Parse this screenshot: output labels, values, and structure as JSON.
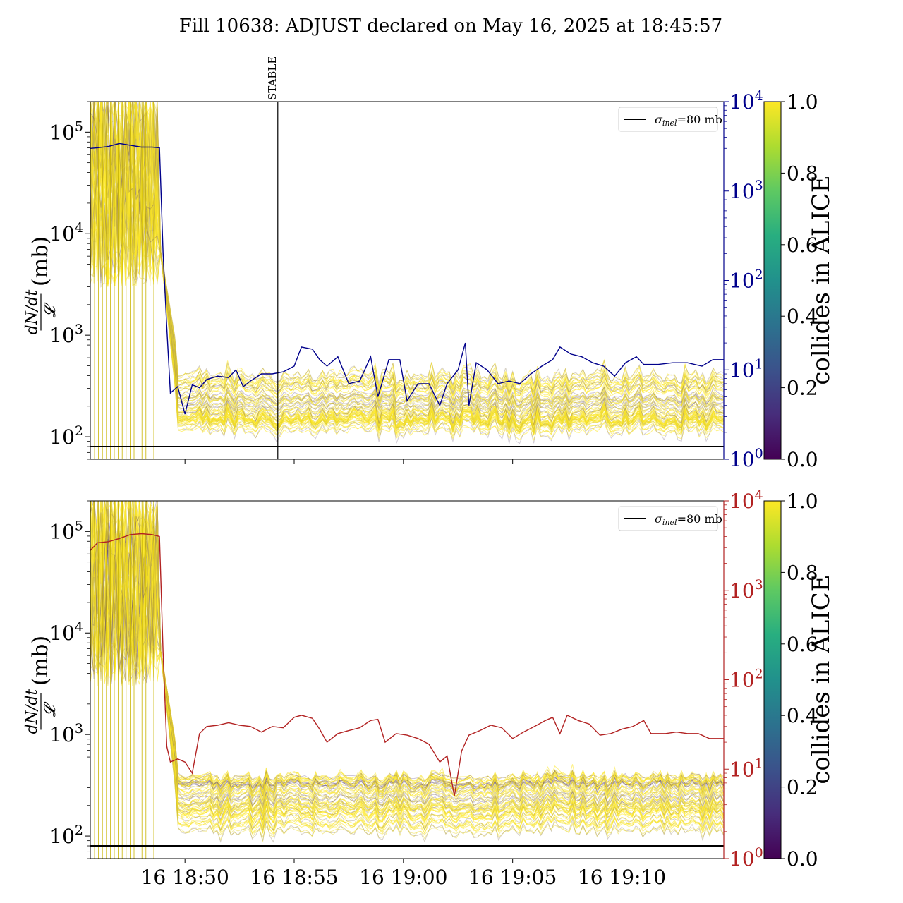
{
  "figure": {
    "title": "Fill 10638: ADJUST declared on May 16, 2025 at 18:45:57"
  },
  "chart_data": [
    {
      "type": "line",
      "panel": "top",
      "ylabel_num": "dN/dt",
      "ylabel_den": "𝓛",
      "ylabel_unit": "(mb)",
      "y_scale": "log",
      "ylim": [
        60,
        200000
      ],
      "y_ticks": [
        {
          "base": "10",
          "exp": "2"
        },
        {
          "base": "10",
          "exp": "3"
        },
        {
          "base": "10",
          "exp": "4"
        },
        {
          "base": "10",
          "exp": "5"
        }
      ],
      "y2_scale": "log",
      "y2lim": [
        1,
        10000
      ],
      "y2_color": "#00008b",
      "y2_ticks": [
        {
          "base": "10",
          "exp": "0"
        },
        {
          "base": "10",
          "exp": "1"
        },
        {
          "base": "10",
          "exp": "2"
        },
        {
          "base": "10",
          "exp": "3"
        },
        {
          "base": "10",
          "exp": "4"
        }
      ],
      "xlim": [
        "18:45:40",
        "19:14:40"
      ],
      "vline": {
        "x": "18:54:15",
        "label": "STABLE"
      },
      "hline": {
        "y": 80,
        "legend": {
          "prefix": "σ",
          "sub": "inel",
          "suffix": "=80 mb"
        }
      },
      "bunch_color_scale": "viridis",
      "secondary_series_color": "#00008b",
      "secondary_series": [
        [
          "18:45:40",
          3000
        ],
        [
          "18:46:00",
          3050
        ],
        [
          "18:46:30",
          3150
        ],
        [
          "18:47:00",
          3400
        ],
        [
          "18:47:30",
          3250
        ],
        [
          "18:48:00",
          3100
        ],
        [
          "18:48:30",
          3100
        ],
        [
          "18:48:50",
          3050
        ],
        [
          "18:49:00",
          200
        ],
        [
          "18:49:10",
          30
        ],
        [
          "18:49:20",
          5.5
        ],
        [
          "18:49:40",
          6.5
        ],
        [
          "18:50:00",
          3.2
        ],
        [
          "18:50:20",
          6.8
        ],
        [
          "18:50:40",
          6.3
        ],
        [
          "18:51:00",
          7.8
        ],
        [
          "18:51:30",
          8.5
        ],
        [
          "18:52:00",
          8.2
        ],
        [
          "18:52:20",
          10
        ],
        [
          "18:52:40",
          6.5
        ],
        [
          "18:53:00",
          7.5
        ],
        [
          "18:53:30",
          9
        ],
        [
          "18:54:00",
          9
        ],
        [
          "18:54:30",
          9.5
        ],
        [
          "18:55:00",
          11
        ],
        [
          "18:55:20",
          18
        ],
        [
          "18:55:50",
          17
        ],
        [
          "18:56:10",
          13
        ],
        [
          "18:56:30",
          11
        ],
        [
          "18:57:00",
          14
        ],
        [
          "18:57:30",
          7
        ],
        [
          "18:58:00",
          7.5
        ],
        [
          "18:58:30",
          14
        ],
        [
          "18:58:50",
          5
        ],
        [
          "18:59:20",
          13
        ],
        [
          "18:59:50",
          13
        ],
        [
          "19:00:10",
          4.5
        ],
        [
          "19:00:40",
          7
        ],
        [
          "19:01:10",
          7
        ],
        [
          "19:01:40",
          4
        ],
        [
          "19:02:00",
          7
        ],
        [
          "19:02:30",
          10
        ],
        [
          "19:02:50",
          20
        ],
        [
          "19:03:00",
          4
        ],
        [
          "19:03:20",
          12
        ],
        [
          "19:03:50",
          10
        ],
        [
          "19:04:20",
          7
        ],
        [
          "19:04:50",
          7.5
        ],
        [
          "19:05:20",
          7
        ],
        [
          "19:05:50",
          9
        ],
        [
          "19:06:20",
          11
        ],
        [
          "19:06:50",
          13
        ],
        [
          "19:07:10",
          18
        ],
        [
          "19:07:40",
          15
        ],
        [
          "19:08:10",
          14
        ],
        [
          "19:08:40",
          12
        ],
        [
          "19:09:10",
          11
        ],
        [
          "19:09:40",
          8.5
        ],
        [
          "19:10:10",
          12
        ],
        [
          "19:10:40",
          14
        ],
        [
          "19:11:00",
          11.5
        ],
        [
          "19:11:40",
          11.5
        ],
        [
          "19:12:20",
          12
        ],
        [
          "19:13:00",
          12
        ],
        [
          "19:13:40",
          11
        ],
        [
          "19:14:10",
          13
        ],
        [
          "19:14:40",
          13
        ]
      ]
    },
    {
      "type": "line",
      "panel": "bottom",
      "ylabel_num": "dN/dt",
      "ylabel_den": "𝓛",
      "ylabel_unit": "(mb)",
      "y_scale": "log",
      "ylim": [
        60,
        200000
      ],
      "y_ticks": [
        {
          "base": "10",
          "exp": "2"
        },
        {
          "base": "10",
          "exp": "3"
        },
        {
          "base": "10",
          "exp": "4"
        },
        {
          "base": "10",
          "exp": "5"
        }
      ],
      "y2_scale": "log",
      "y2lim": [
        1,
        10000
      ],
      "y2_color": "#b22222",
      "y2_ticks": [
        {
          "base": "10",
          "exp": "0"
        },
        {
          "base": "10",
          "exp": "1"
        },
        {
          "base": "10",
          "exp": "2"
        },
        {
          "base": "10",
          "exp": "3"
        },
        {
          "base": "10",
          "exp": "4"
        }
      ],
      "xlim": [
        "18:45:40",
        "19:14:40"
      ],
      "x_ticks": [
        "16 18:50",
        "16 18:55",
        "16 19:00",
        "16 19:05",
        "16 19:10"
      ],
      "x_tick_times": [
        "18:50:00",
        "18:55:00",
        "19:00:00",
        "19:05:00",
        "19:10:00"
      ],
      "hline": {
        "y": 80,
        "legend": {
          "prefix": "σ",
          "sub": "inel",
          "suffix": "=80 mb"
        }
      },
      "bunch_color_scale": "viridis",
      "secondary_series_color": "#b22222",
      "secondary_series": [
        [
          "18:45:40",
          2800
        ],
        [
          "18:46:00",
          3400
        ],
        [
          "18:46:30",
          3500
        ],
        [
          "18:47:00",
          3800
        ],
        [
          "18:47:30",
          4200
        ],
        [
          "18:48:00",
          4300
        ],
        [
          "18:48:30",
          4200
        ],
        [
          "18:48:50",
          4000
        ],
        [
          "18:49:00",
          200
        ],
        [
          "18:49:10",
          18
        ],
        [
          "18:49:20",
          12
        ],
        [
          "18:49:40",
          13
        ],
        [
          "18:50:00",
          12
        ],
        [
          "18:50:20",
          9
        ],
        [
          "18:50:40",
          25
        ],
        [
          "18:51:00",
          30
        ],
        [
          "18:51:30",
          31
        ],
        [
          "18:52:00",
          33
        ],
        [
          "18:52:30",
          31
        ],
        [
          "18:53:00",
          30
        ],
        [
          "18:53:30",
          26
        ],
        [
          "18:54:00",
          30
        ],
        [
          "18:54:30",
          29
        ],
        [
          "18:55:00",
          38
        ],
        [
          "18:55:20",
          40
        ],
        [
          "18:55:50",
          37
        ],
        [
          "18:56:10",
          28
        ],
        [
          "18:56:30",
          20
        ],
        [
          "18:57:00",
          25
        ],
        [
          "18:57:30",
          27
        ],
        [
          "18:58:00",
          29
        ],
        [
          "18:58:30",
          35
        ],
        [
          "18:58:50",
          36
        ],
        [
          "18:59:10",
          20
        ],
        [
          "18:59:40",
          25
        ],
        [
          "19:00:10",
          24
        ],
        [
          "19:00:40",
          22
        ],
        [
          "19:01:10",
          19
        ],
        [
          "19:01:40",
          12
        ],
        [
          "19:02:00",
          14
        ],
        [
          "19:02:20",
          5
        ],
        [
          "19:02:40",
          16
        ],
        [
          "19:03:00",
          24
        ],
        [
          "19:03:30",
          27
        ],
        [
          "19:04:00",
          31
        ],
        [
          "19:04:30",
          29
        ],
        [
          "19:05:00",
          22
        ],
        [
          "19:05:30",
          26
        ],
        [
          "19:06:00",
          30
        ],
        [
          "19:06:30",
          35
        ],
        [
          "19:06:50",
          38
        ],
        [
          "19:07:10",
          25
        ],
        [
          "19:07:30",
          40
        ],
        [
          "19:08:00",
          35
        ],
        [
          "19:08:30",
          32
        ],
        [
          "19:09:00",
          24
        ],
        [
          "19:09:30",
          25
        ],
        [
          "19:10:00",
          28
        ],
        [
          "19:10:30",
          30
        ],
        [
          "19:11:00",
          35
        ],
        [
          "19:11:20",
          25
        ],
        [
          "19:12:00",
          25
        ],
        [
          "19:12:30",
          26
        ],
        [
          "19:13:00",
          25
        ],
        [
          "19:13:30",
          25
        ],
        [
          "19:14:00",
          22
        ],
        [
          "19:14:40",
          22
        ]
      ]
    }
  ],
  "colorbars": [
    {
      "label": "collides in ALICE",
      "ticks": [
        "0.0",
        "0.2",
        "0.4",
        "0.6",
        "0.8",
        "1.0"
      ]
    },
    {
      "label": "collides in ALICE",
      "ticks": [
        "0.0",
        "0.2",
        "0.4",
        "0.6",
        "0.8",
        "1.0"
      ]
    }
  ]
}
